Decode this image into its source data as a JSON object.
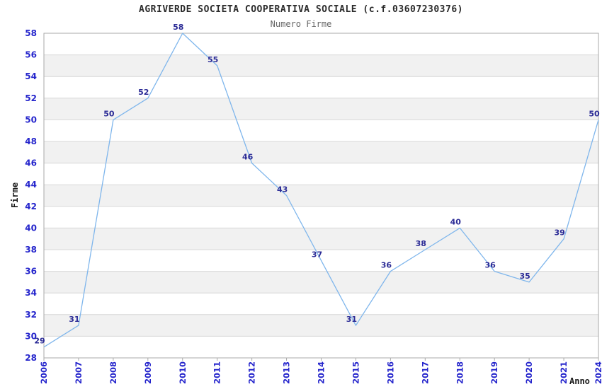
{
  "chart_data": {
    "type": "line",
    "title": "AGRIVERDE SOCIETA COOPERATIVA SOCIALE (c.f.03607230376)",
    "subtitle": "Numero Firme",
    "xlabel": "Anno",
    "ylabel": "Firme",
    "categories": [
      "2006",
      "2007",
      "2008",
      "2009",
      "2010",
      "2011",
      "2012",
      "2013",
      "2014",
      "2015",
      "2016",
      "2017",
      "2018",
      "2019",
      "2020",
      "2021",
      "2024"
    ],
    "values": [
      29,
      31,
      50,
      52,
      58,
      55,
      46,
      43,
      37,
      31,
      36,
      38,
      40,
      36,
      35,
      39,
      50
    ],
    "ylim": [
      28,
      58
    ],
    "ytick_step": 2,
    "yticks": [
      "28",
      "30",
      "32",
      "34",
      "36",
      "38",
      "40",
      "42",
      "44",
      "46",
      "48",
      "50",
      "52",
      "54",
      "56",
      "58"
    ],
    "grid": true,
    "alternating_bands": true,
    "legend_position": "none",
    "colors": {
      "line": "#7fb6ec",
      "data_label": "#2b2b96",
      "tick_label": "#2525cc",
      "band_gray": "#f1f1f1",
      "band_white": "#ffffff",
      "gridline": "#d7d7d7",
      "plot_border": "#a9a9a9",
      "title": "#2b2b2b",
      "subtitle": "#666666",
      "background": "#ffffff"
    }
  }
}
